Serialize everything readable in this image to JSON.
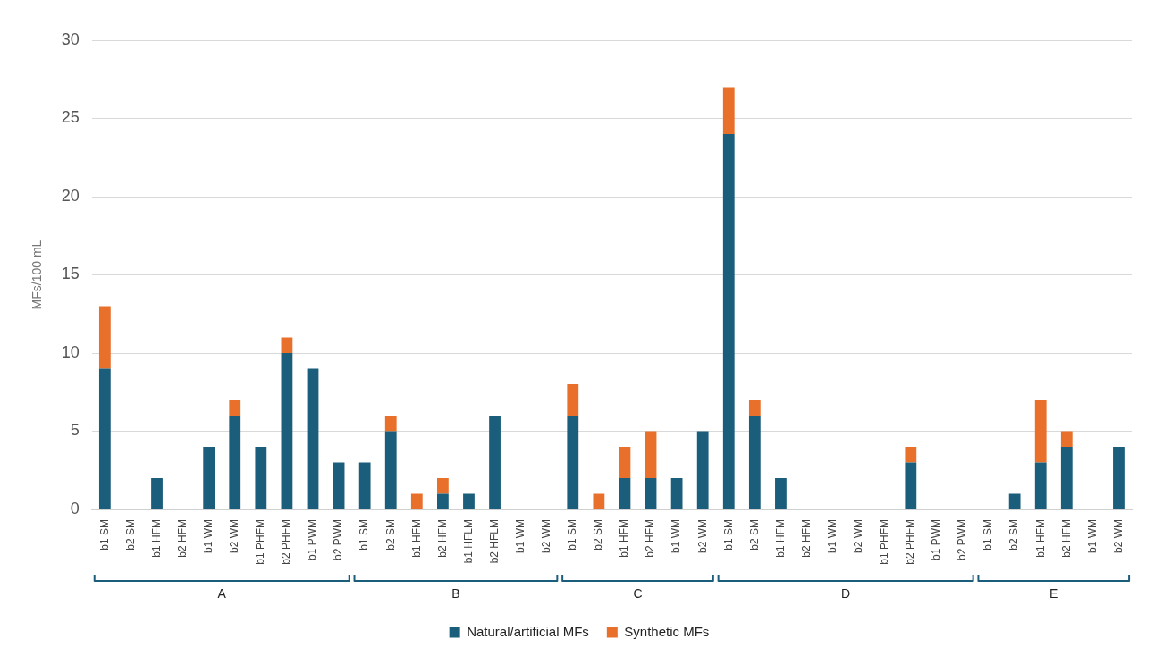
{
  "chart_data": {
    "type": "bar",
    "ylabel": "MFs/100 mL",
    "stacked": true,
    "grid": "y",
    "legend": "bottom",
    "categories": [
      "b1 SM",
      "b2 SM",
      "b1 HFM",
      "b2 HFM",
      "b1 WM",
      "b2 WM",
      "b1 PHFM",
      "b2 PHFM",
      "b1 PWM",
      "b2 PWM",
      "b1 SM",
      "b2 SM",
      "b1 HFM",
      "b2 HFM",
      "b1 HFLM",
      "b2 HFLM",
      "b1 WM",
      "b2 WM",
      "b1 SM",
      "b2 SM",
      "b1 HFM",
      "b2 HFM",
      "b1 WM",
      "b2 WM",
      "b1 SM",
      "b2 SM",
      "b1 HFM",
      "b2 HFM",
      "b1 WM",
      "b2 WM",
      "b1 PHFM",
      "b2 PHFM",
      "b1 PWM",
      "b2 PWM",
      "b1 SM",
      "b2 SM",
      "b1 HFM",
      "b2 HFM",
      "b1 WM",
      "b2 WM"
    ],
    "series": [
      {
        "name": "Natural/artificial MFs",
        "color": "#1b5e7b",
        "values": [
          9,
          0,
          2,
          0,
          4,
          6,
          4,
          10,
          9,
          3,
          3,
          5,
          0,
          1,
          1,
          6,
          0,
          0,
          6,
          0,
          2,
          2,
          2,
          5,
          24,
          6,
          2,
          0,
          0,
          0,
          0,
          3,
          0,
          0,
          0,
          1,
          3,
          4,
          0,
          4
        ]
      },
      {
        "name": "Synthetic MFs",
        "color": "#e8702a",
        "values": [
          4,
          0,
          0,
          0,
          0,
          1,
          0,
          1,
          0,
          0,
          0,
          1,
          1,
          1,
          0,
          0,
          0,
          0,
          2,
          1,
          2,
          3,
          0,
          0,
          3,
          1,
          0,
          0,
          0,
          0,
          0,
          1,
          0,
          0,
          0,
          0,
          4,
          1,
          0,
          0
        ]
      }
    ],
    "ylim": [
      0,
      30
    ],
    "yticks": [
      0,
      5,
      10,
      15,
      20,
      25,
      30
    ],
    "annotations": [
      "A",
      "B",
      "C",
      "D",
      "E"
    ]
  }
}
